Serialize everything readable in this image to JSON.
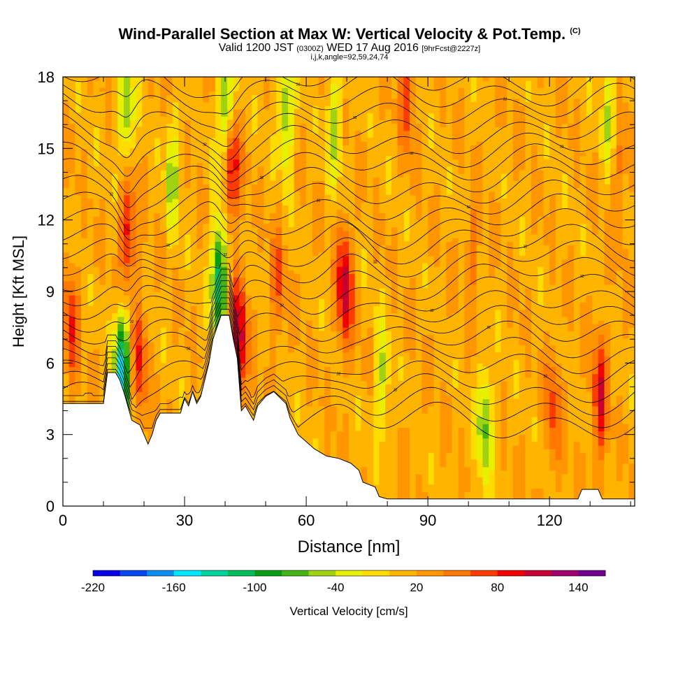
{
  "header": {
    "title": "Wind-Parallel Section at Max W: Vertical Velocity & Pot.Temp.",
    "title_mark": "(C)",
    "valid_prefix": "Valid 1200 JST",
    "valid_utc": "(0300Z)",
    "valid_date": "WED 17 Aug 2016",
    "forecast": "[9hrFcst@2227z]",
    "grid_info": "i,j,k,angle=92,59,24,74"
  },
  "chart_data": {
    "type": "heatmap",
    "title": "Wind-Parallel Section at Max W: Vertical Velocity & Pot.Temp.",
    "xlabel": "Distance [nm]",
    "ylabel": "Height [Kft MSL]",
    "xlim": [
      0,
      141
    ],
    "ylim": [
      0,
      18
    ],
    "x_ticks": [
      0,
      30,
      60,
      90,
      120
    ],
    "y_ticks": [
      0,
      3,
      6,
      9,
      12,
      15,
      18
    ],
    "grid": false,
    "colorbar": {
      "label": "Vertical Velocity [cm/s]",
      "ticks": [
        -220,
        -160,
        -100,
        -40,
        20,
        80,
        140
      ],
      "min": -220,
      "max": 160,
      "step": 20,
      "colors": [
        "#0a00e6",
        "#0a46f0",
        "#0a8cf0",
        "#00e6ff",
        "#00d2a0",
        "#00be5a",
        "#0a9b14",
        "#46b414",
        "#a0d214",
        "#e6f000",
        "#ffdc00",
        "#ffb400",
        "#ff9600",
        "#ff7800",
        "#ff3c00",
        "#f00000",
        "#c80032",
        "#a0006e",
        "#6e008c"
      ]
    },
    "terrain": [
      [
        0,
        4.3
      ],
      [
        10,
        4.3
      ],
      [
        11,
        5.6
      ],
      [
        13,
        5.6
      ],
      [
        14,
        5.3
      ],
      [
        15,
        4.8
      ],
      [
        16,
        4.2
      ],
      [
        17,
        3.6
      ],
      [
        19,
        3.4
      ],
      [
        20,
        3.0
      ],
      [
        21,
        2.6
      ],
      [
        22,
        3.0
      ],
      [
        23,
        3.6
      ],
      [
        24,
        3.9
      ],
      [
        29,
        3.9
      ],
      [
        30,
        4.5
      ],
      [
        31,
        4.2
      ],
      [
        32,
        4.8
      ],
      [
        33,
        4.3
      ],
      [
        34,
        4.6
      ],
      [
        36,
        6.0
      ],
      [
        37,
        7.0
      ],
      [
        39,
        8.0
      ],
      [
        41,
        8.0
      ],
      [
        42,
        7.0
      ],
      [
        43,
        6.2
      ],
      [
        44,
        4.0
      ],
      [
        45,
        4.2
      ],
      [
        46,
        3.9
      ],
      [
        47,
        3.6
      ],
      [
        48,
        4.2
      ],
      [
        50,
        4.6
      ],
      [
        52,
        4.8
      ],
      [
        55,
        4.3
      ],
      [
        56,
        3.7
      ],
      [
        58,
        3.0
      ],
      [
        60,
        2.7
      ],
      [
        62,
        2.4
      ],
      [
        65,
        2.1
      ],
      [
        68,
        2.0
      ],
      [
        71,
        1.8
      ],
      [
        73,
        1.5
      ],
      [
        74,
        1.0
      ],
      [
        77,
        0.8
      ],
      [
        78,
        0.4
      ],
      [
        80,
        0.3
      ],
      [
        127,
        0.3
      ],
      [
        128,
        0.7
      ],
      [
        132,
        0.7
      ],
      [
        133,
        0.3
      ],
      [
        141,
        0.3
      ]
    ],
    "updrafts": [
      {
        "x": 16,
        "y": 11.5,
        "value": 80
      },
      {
        "x": 41.5,
        "y": 14.5,
        "value": 120
      },
      {
        "x": 43.5,
        "y": 7.0,
        "value": 100
      },
      {
        "x": 69.5,
        "y": 9.2,
        "value": 100
      },
      {
        "x": 85,
        "y": 17.5,
        "value": 60
      },
      {
        "x": 132.5,
        "y": 4.5,
        "value": 80
      },
      {
        "x": 19,
        "y": 6.0,
        "value": 60
      },
      {
        "x": 2,
        "y": 7.5,
        "value": 60
      },
      {
        "x": 121,
        "y": 4.0,
        "value": 50
      },
      {
        "x": 53,
        "y": 9.5,
        "value": 40
      },
      {
        "x": 101,
        "y": 10.5,
        "value": 30
      },
      {
        "x": 137,
        "y": 14.0,
        "value": 40
      }
    ],
    "downdrafts": [
      {
        "x": 14.5,
        "y": 5.6,
        "value": -160
      },
      {
        "x": 38.5,
        "y": 9.5,
        "value": -140
      },
      {
        "x": 40.5,
        "y": 16.5,
        "value": -120
      },
      {
        "x": 15.5,
        "y": 16.5,
        "value": -80
      },
      {
        "x": 27,
        "y": 14.0,
        "value": -60
      },
      {
        "x": 55,
        "y": 16.5,
        "value": -80
      },
      {
        "x": 67,
        "y": 16.0,
        "value": -60
      },
      {
        "x": 78.5,
        "y": 5.2,
        "value": -60
      },
      {
        "x": 104,
        "y": 3.5,
        "value": -80
      },
      {
        "x": 135,
        "y": 16.5,
        "value": -60
      }
    ],
    "isentropes": {
      "count": 26,
      "lowest_level": 3.5,
      "highest_level": 18.0,
      "label_text": "32"
    }
  }
}
